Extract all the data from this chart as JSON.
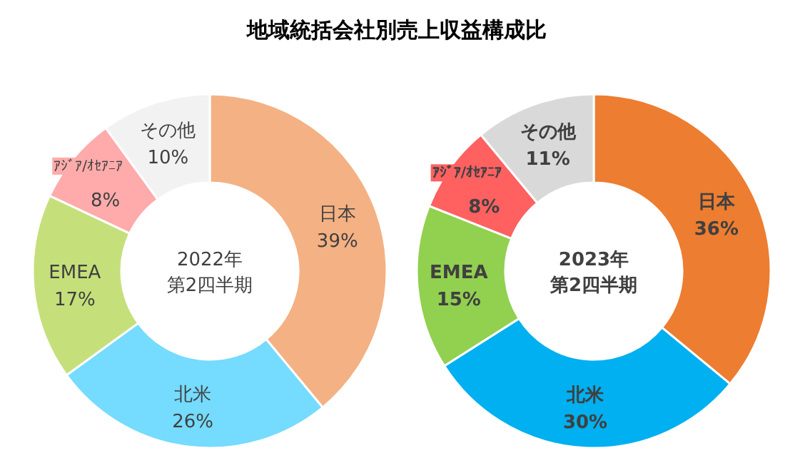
{
  "chart_data": [
    {
      "type": "donut",
      "title": "地域統括会社別売上収益構成比",
      "annotations": [
        "2022年",
        "第2四半期"
      ],
      "categories": [
        "日本",
        "北米",
        "EMEA",
        "ｱｼﾞｱ/ｵｾｱﾆｱ",
        "その他"
      ],
      "values": [
        39,
        26,
        17,
        8,
        10
      ],
      "value_labels": [
        "39%",
        "26%",
        "17%",
        "8%",
        "10%"
      ],
      "colors": [
        "#f4b183",
        "#75dbff",
        "#c5e07a",
        "#ffabab",
        "#f2f2f2"
      ]
    },
    {
      "type": "donut",
      "annotations": [
        "2023年",
        "第2四半期"
      ],
      "categories": [
        "日本",
        "北米",
        "EMEA",
        "ｱｼﾞｱ/ｵｾｱﾆｱ",
        "その他"
      ],
      "values": [
        36,
        30,
        15,
        8,
        11
      ],
      "value_labels": [
        "36%",
        "30%",
        "15%",
        "8%",
        "11%"
      ],
      "colors": [
        "#ed7d31",
        "#00b0f0",
        "#92d050",
        "#ff6161",
        "#d9d9d9"
      ]
    }
  ]
}
